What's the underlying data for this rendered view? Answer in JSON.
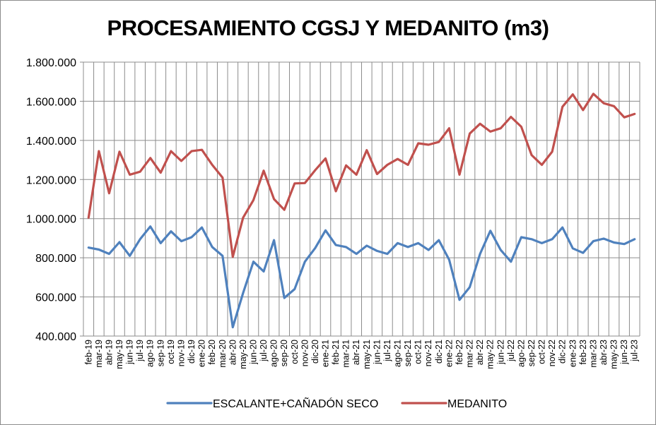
{
  "chart_data": {
    "type": "line",
    "title": "PROCESAMIENTO CGSJ Y MEDANITO (m3)",
    "ylim": [
      400000,
      1800000
    ],
    "yticks": [
      400000,
      600000,
      800000,
      1000000,
      1200000,
      1400000,
      1600000,
      1800000
    ],
    "ytick_labels": [
      "400.000",
      "600.000",
      "800.000",
      "1.000.000",
      "1.200.000",
      "1.400.000",
      "1.600.000",
      "1.800.000"
    ],
    "grid": true,
    "legend_position": "bottom",
    "categories": [
      "feb-19",
      "mar-19",
      "abr-19",
      "may-19",
      "jun-19",
      "jul-19",
      "ago-19",
      "sep-19",
      "oct-19",
      "nov-19",
      "dic-19",
      "ene-20",
      "feb-20",
      "mar-20",
      "abr-20",
      "may-20",
      "jun-20",
      "jul-20",
      "ago-20",
      "sep-20",
      "oct-20",
      "nov-20",
      "dic-20",
      "ene-21",
      "feb-21",
      "mar-21",
      "abr-21",
      "may-21",
      "jun-21",
      "jul-21",
      "ago-21",
      "sep-21",
      "oct-21",
      "nov-21",
      "dic-21",
      "ene-22",
      "feb-22",
      "mar-22",
      "abr-22",
      "may-22",
      "jun-22",
      "jul-22",
      "ago-22",
      "sep-22",
      "oct-22",
      "nov-22",
      "dic-22",
      "ene-23",
      "feb-23",
      "mar-23",
      "abr-23",
      "may-23",
      "jun-23",
      "jul-23"
    ],
    "series": [
      {
        "name": "ESCALANTE+CAÑADÓN SECO",
        "color": "#4f81bd",
        "values": [
          852000,
          842000,
          820000,
          880000,
          810000,
          895000,
          960000,
          875000,
          935000,
          885000,
          905000,
          955000,
          855000,
          810000,
          445000,
          620000,
          780000,
          730000,
          890000,
          595000,
          640000,
          780000,
          850000,
          940000,
          865000,
          855000,
          820000,
          862000,
          835000,
          820000,
          875000,
          855000,
          875000,
          840000,
          890000,
          790000,
          585000,
          650000,
          820000,
          938000,
          840000,
          780000,
          905000,
          895000,
          875000,
          895000,
          955000,
          848000,
          825000,
          885000,
          898000,
          878000,
          870000,
          895000
        ]
      },
      {
        "name": "MEDANITO",
        "color": "#c0504d",
        "values": [
          1005000,
          1345000,
          1130000,
          1342000,
          1225000,
          1240000,
          1310000,
          1235000,
          1345000,
          1295000,
          1345000,
          1352000,
          1275000,
          1210000,
          805000,
          1005000,
          1095000,
          1245000,
          1100000,
          1045000,
          1180000,
          1182000,
          1248000,
          1308000,
          1140000,
          1272000,
          1225000,
          1350000,
          1228000,
          1275000,
          1305000,
          1275000,
          1385000,
          1378000,
          1392000,
          1462000,
          1225000,
          1435000,
          1485000,
          1445000,
          1462000,
          1520000,
          1470000,
          1325000,
          1275000,
          1342000,
          1572000,
          1635000,
          1555000,
          1638000,
          1590000,
          1575000,
          1518000,
          1535000
        ]
      }
    ]
  }
}
